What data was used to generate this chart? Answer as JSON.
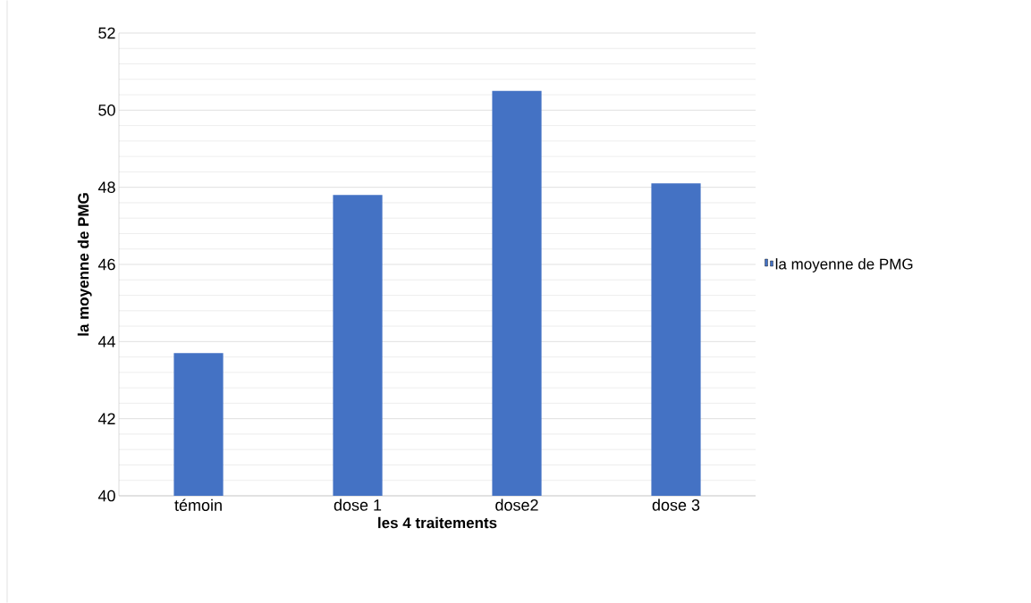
{
  "chart_data": {
    "type": "bar",
    "xlabel": "les 4 traitements",
    "ylabel": "la moyenne de PMG",
    "categories": [
      "témoin",
      "dose 1",
      "dose2",
      "dose 3"
    ],
    "series": [
      {
        "name": "la moyenne de PMG",
        "color": "#4472c4",
        "values": [
          43.7,
          47.8,
          50.5,
          48.1
        ]
      }
    ],
    "ylim": [
      40,
      52
    ],
    "yticks": [
      40,
      42,
      44,
      46,
      48,
      50,
      52
    ],
    "grid": "y",
    "legend": "right"
  }
}
